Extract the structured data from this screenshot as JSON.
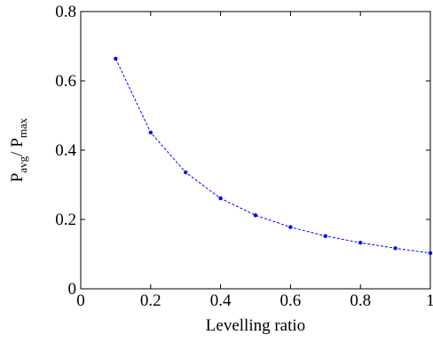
{
  "chart_data": {
    "type": "line",
    "xlabel": "Levelling ratio",
    "ylabel": {
      "parts": [
        {
          "text": "P",
          "sub": false
        },
        {
          "text": "avg",
          "sub": true
        },
        {
          "text": "/ P",
          "sub": false
        },
        {
          "text": "max",
          "sub": true
        }
      ]
    },
    "xlim": [
      0,
      1
    ],
    "ylim": [
      0,
      0.8
    ],
    "xticks": [
      {
        "value": 0,
        "label": "0"
      },
      {
        "value": 0.2,
        "label": "0.2"
      },
      {
        "value": 0.4,
        "label": "0.4"
      },
      {
        "value": 0.6,
        "label": "0.6"
      },
      {
        "value": 0.8,
        "label": "0.8"
      },
      {
        "value": 1,
        "label": "1"
      }
    ],
    "yticks": [
      {
        "value": 0,
        "label": "0"
      },
      {
        "value": 0.2,
        "label": "0.2"
      },
      {
        "value": 0.4,
        "label": "0.4"
      },
      {
        "value": 0.6,
        "label": "0.6"
      },
      {
        "value": 0.8,
        "label": "0.8"
      }
    ],
    "grid": false,
    "legend": "none",
    "series": [
      {
        "color": "#0000ff",
        "line_style": "dashed",
        "marker": "dot",
        "x": [
          0.1,
          0.2,
          0.3,
          0.4,
          0.5,
          0.6,
          0.7,
          0.8,
          0.9,
          1.0
        ],
        "y": [
          0.664,
          0.451,
          0.336,
          0.261,
          0.212,
          0.178,
          0.152,
          0.133,
          0.117,
          0.103
        ]
      }
    ]
  }
}
